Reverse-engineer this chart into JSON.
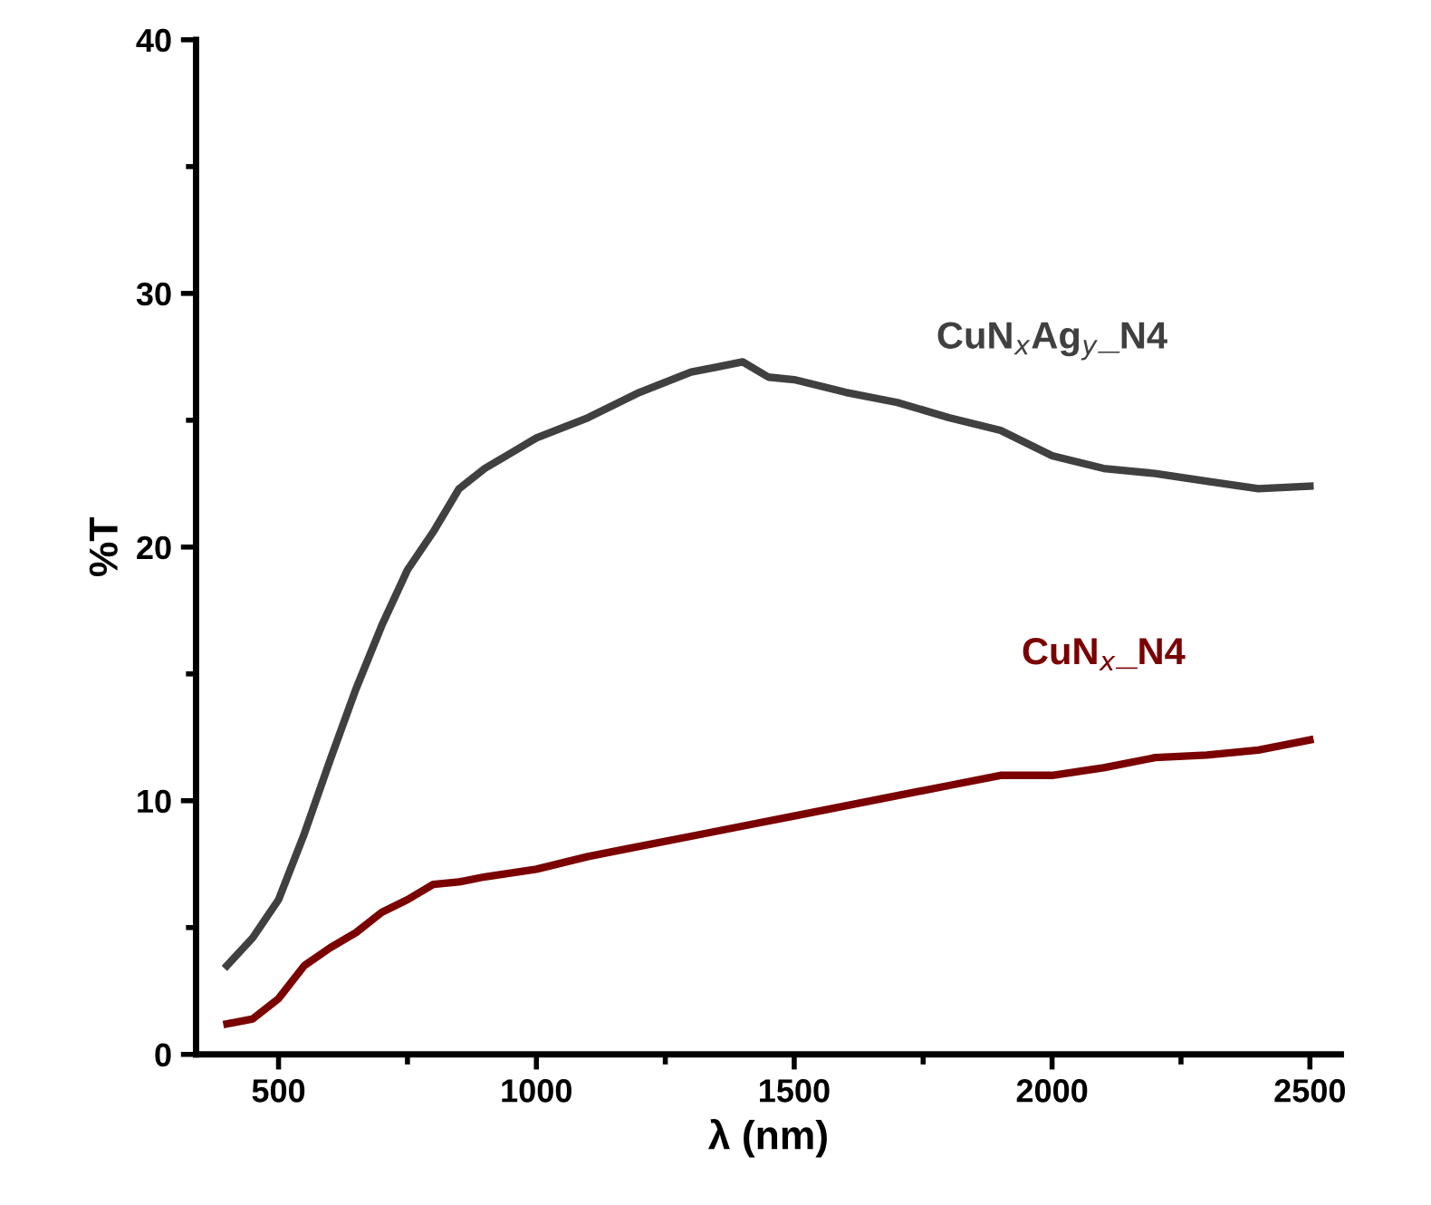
{
  "chart_data": {
    "type": "line",
    "xlabel": "λ (nm)",
    "ylabel": "%T",
    "xlim": [
      340,
      2560
    ],
    "ylim": [
      0,
      40
    ],
    "xticks": [
      500,
      1000,
      1500,
      2000,
      2500
    ],
    "yticks": [
      0,
      10,
      20,
      30,
      40
    ],
    "grid": false,
    "legend": false,
    "marker": "none",
    "line_style": "solid",
    "series": [
      {
        "name": "CuN$_{x}$Ag$_{y}$_N4",
        "color": "#404040",
        "x": [
          400,
          450,
          500,
          550,
          600,
          650,
          700,
          750,
          800,
          850,
          900,
          950,
          1000,
          1100,
          1200,
          1300,
          1350,
          1400,
          1450,
          1500,
          1600,
          1700,
          1800,
          1900,
          2000,
          2100,
          2200,
          2300,
          2400,
          2500
        ],
        "values": [
          3.5,
          4.6,
          6.1,
          8.7,
          11.6,
          14.4,
          16.9,
          19.1,
          20.6,
          22.3,
          23.1,
          23.7,
          24.3,
          25.1,
          26.1,
          26.9,
          27.1,
          27.3,
          26.7,
          26.6,
          26.1,
          25.7,
          25.1,
          24.6,
          23.6,
          23.1,
          22.9,
          22.6,
          22.3,
          22.4
        ]
      },
      {
        "name": "CuN$_{x}$_N4",
        "color": "#7b0000",
        "x": [
          400,
          450,
          500,
          550,
          600,
          650,
          700,
          750,
          800,
          850,
          900,
          1000,
          1100,
          1200,
          1300,
          1400,
          1500,
          1600,
          1700,
          1800,
          1900,
          2000,
          2100,
          2200,
          2300,
          2400,
          2500
        ],
        "values": [
          1.2,
          1.4,
          2.2,
          3.5,
          4.2,
          4.8,
          5.6,
          6.1,
          6.7,
          6.8,
          7.0,
          7.3,
          7.8,
          8.2,
          8.6,
          9.0,
          9.4,
          9.8,
          10.2,
          10.6,
          11.0,
          11.0,
          11.3,
          11.7,
          11.8,
          12.0,
          12.4
        ]
      }
    ]
  }
}
